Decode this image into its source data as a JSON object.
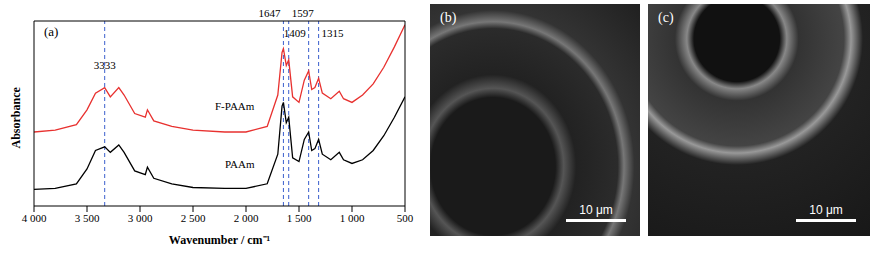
{
  "chart_data": {
    "type": "line",
    "title": "(a)",
    "x_label": "Wavenumber / cm⁻¹",
    "y_label": "Absorbance",
    "x": [
      4000,
      3800,
      3600,
      3500,
      3420,
      3333,
      3280,
      3200,
      3150,
      3050,
      2950,
      2930,
      2870,
      2700,
      2500,
      2200,
      2000,
      1800,
      1700,
      1660,
      1647,
      1620,
      1597,
      1560,
      1500,
      1450,
      1409,
      1380,
      1350,
      1315,
      1280,
      1200,
      1120,
      1080,
      1000,
      900,
      800,
      700,
      600,
      500
    ],
    "series": [
      {
        "name": "F-PAAm",
        "color": "#e8312f",
        "values": [
          4.0,
          4.1,
          4.4,
          5.2,
          6.1,
          6.4,
          5.9,
          6.4,
          6.0,
          5.0,
          4.8,
          5.2,
          4.6,
          4.3,
          4.1,
          4.0,
          4.0,
          4.3,
          6.0,
          8.3,
          8.5,
          7.6,
          7.9,
          5.9,
          5.6,
          6.8,
          7.3,
          6.3,
          6.4,
          6.9,
          6.1,
          5.8,
          6.2,
          5.8,
          5.6,
          6.0,
          6.6,
          7.5,
          8.6,
          9.8
        ]
      },
      {
        "name": "PAAm",
        "color": "#000000",
        "values": [
          0.9,
          0.95,
          1.2,
          2.0,
          3.0,
          3.2,
          2.9,
          3.3,
          2.9,
          1.9,
          1.7,
          2.1,
          1.5,
          1.2,
          1.0,
          0.95,
          0.95,
          1.2,
          2.8,
          5.4,
          5.6,
          4.5,
          4.8,
          2.6,
          2.4,
          3.6,
          4.0,
          3.0,
          3.1,
          3.6,
          2.8,
          2.5,
          2.9,
          2.5,
          2.3,
          2.5,
          3.0,
          3.8,
          4.8,
          5.9
        ]
      }
    ],
    "xlim": [
      4000,
      500
    ],
    "xticks": [
      {
        "value": 4000,
        "label": "4 000"
      },
      {
        "value": 3500,
        "label": "3 500"
      },
      {
        "value": 3000,
        "label": "3 000"
      },
      {
        "value": 2500,
        "label": "2 500"
      },
      {
        "value": 2000,
        "label": "2 000"
      },
      {
        "value": 1500,
        "label": "1 500"
      },
      {
        "value": 1000,
        "label": "1 000"
      },
      500
    ],
    "ylim": [
      0,
      10
    ],
    "yticks": [],
    "tick_labels": "x",
    "annotations": [
      {
        "x": 3333,
        "label": "3333"
      },
      {
        "x": 1647,
        "label": "1647"
      },
      {
        "x": 1597,
        "label": "1597"
      },
      {
        "x": 1409,
        "label": "1409"
      },
      {
        "x": 1315,
        "label": "1315"
      }
    ]
  },
  "images": [
    {
      "label": "(b)",
      "scale_bar": "10 μm"
    },
    {
      "label": "(c)",
      "scale_bar": "10 μm"
    }
  ]
}
